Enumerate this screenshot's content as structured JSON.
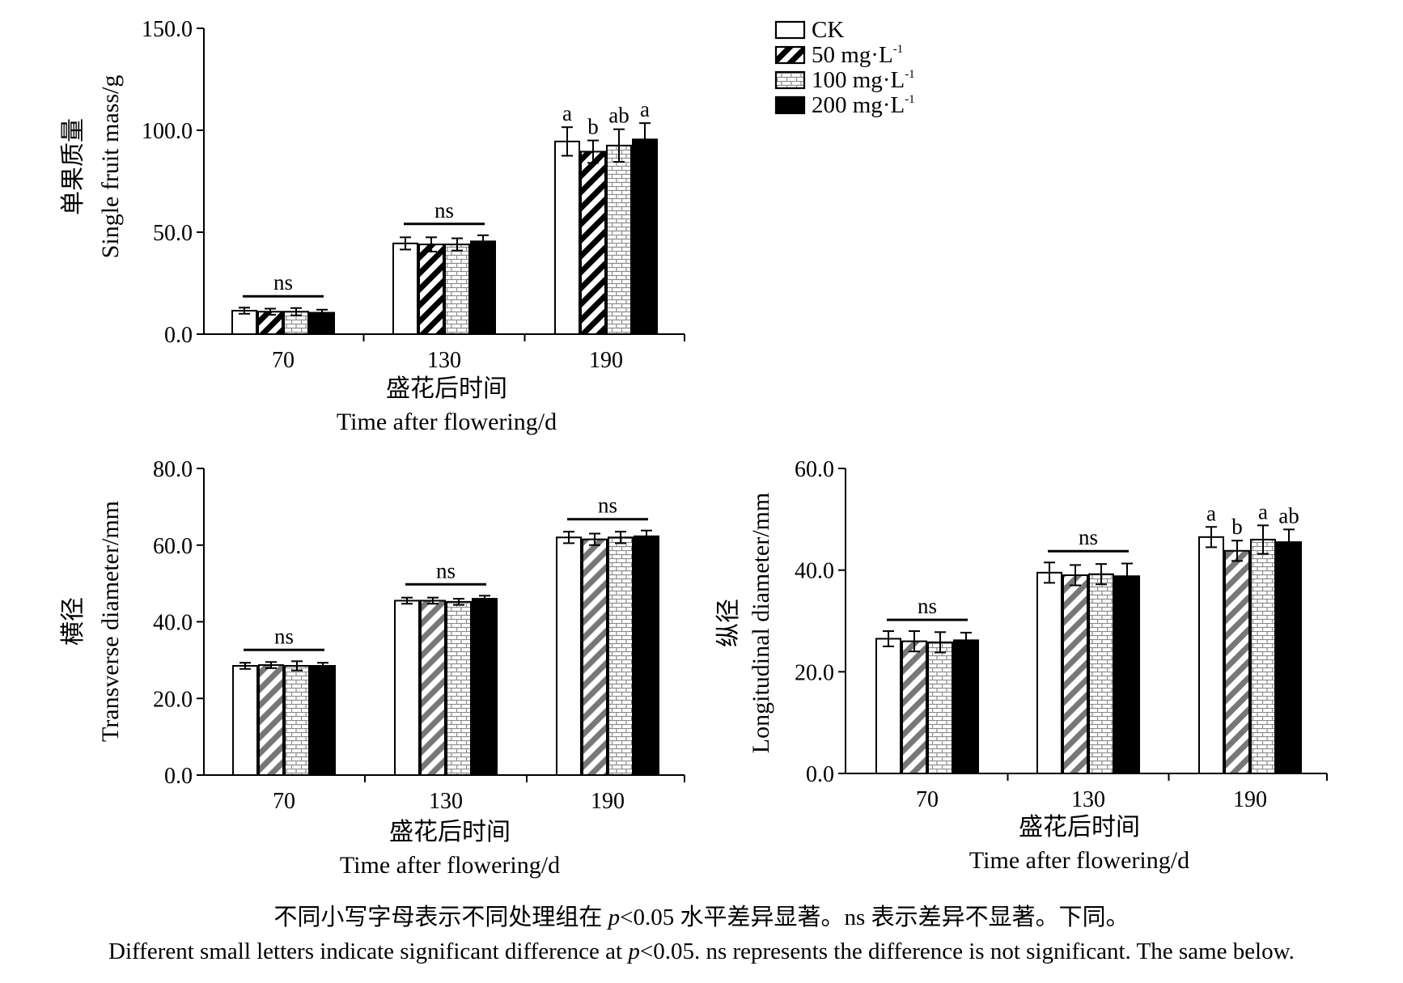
{
  "chart_data": [
    {
      "type": "bar",
      "ylabel_cn": "单果质量",
      "ylabel": "Single fruit mass/g",
      "xlabel_cn": "盛花后时间",
      "xlabel": "Time after flowering/d",
      "ylim": [
        0,
        150
      ],
      "yticks": [
        "0.0",
        "50.0",
        "100.0",
        "150.0"
      ],
      "categories": [
        "70",
        "130",
        "190"
      ],
      "legend": "top-right",
      "series": [
        {
          "name": "CK",
          "values": [
            11.5,
            44.5,
            94.5
          ],
          "errors": [
            1.5,
            3.0,
            7.0
          ]
        },
        {
          "name": "50 mg·L-1",
          "values": [
            11.0,
            44.0,
            89.5
          ],
          "errors": [
            1.5,
            3.5,
            5.5
          ]
        },
        {
          "name": "100 mg·L-1",
          "values": [
            11.0,
            44.0,
            92.5
          ],
          "errors": [
            1.8,
            3.0,
            8.0
          ]
        },
        {
          "name": "200 mg·L-1",
          "values": [
            10.5,
            45.5,
            95.5
          ],
          "errors": [
            1.5,
            3.0,
            8.0
          ]
        }
      ],
      "group_annotations": [
        "ns",
        "ns",
        ""
      ],
      "bar_letters": [
        [
          "",
          "",
          "",
          ""
        ],
        [
          "",
          "",
          "",
          ""
        ],
        [
          "a",
          "b",
          "ab",
          "a"
        ]
      ]
    },
    {
      "type": "bar",
      "ylabel_cn": "横径",
      "ylabel": "Transverse diameter/mm",
      "xlabel_cn": "盛花后时间",
      "xlabel": "Time after flowering/d",
      "ylim": [
        0,
        80
      ],
      "yticks": [
        "0.0",
        "20.0",
        "40.0",
        "60.0",
        "80.0"
      ],
      "categories": [
        "70",
        "130",
        "190"
      ],
      "series": [
        {
          "name": "CK",
          "values": [
            28.5,
            45.5,
            62.0
          ],
          "errors": [
            0.8,
            0.8,
            1.5
          ]
        },
        {
          "name": "50 mg·L-1",
          "values": [
            28.7,
            45.5,
            61.5
          ],
          "errors": [
            0.8,
            0.8,
            1.5
          ]
        },
        {
          "name": "100 mg·L-1",
          "values": [
            28.5,
            45.2,
            62.0
          ],
          "errors": [
            1.2,
            0.8,
            1.5
          ]
        },
        {
          "name": "200 mg·L-1",
          "values": [
            28.5,
            46.0,
            62.3
          ],
          "errors": [
            0.8,
            0.8,
            1.5
          ]
        }
      ],
      "group_annotations": [
        "ns",
        "ns",
        "ns"
      ],
      "bar_letters": [
        [
          "",
          "",
          "",
          ""
        ],
        [
          "",
          "",
          "",
          ""
        ],
        [
          "",
          "",
          "",
          ""
        ]
      ]
    },
    {
      "type": "bar",
      "ylabel_cn": "纵径",
      "ylabel": "Longitudinal diameter/mm",
      "xlabel_cn": "盛花后时间",
      "xlabel": "Time after flowering/d",
      "ylim": [
        0,
        60
      ],
      "yticks": [
        "0.0",
        "20.0",
        "40.0",
        "60.0"
      ],
      "categories": [
        "70",
        "130",
        "190"
      ],
      "series": [
        {
          "name": "CK",
          "values": [
            26.5,
            39.5,
            46.5
          ],
          "errors": [
            1.5,
            2.0,
            2.0
          ]
        },
        {
          "name": "50 mg·L-1",
          "values": [
            26.0,
            39.0,
            43.8
          ],
          "errors": [
            2.0,
            2.0,
            2.0
          ]
        },
        {
          "name": "100 mg·L-1",
          "values": [
            25.8,
            39.2,
            46.0
          ],
          "errors": [
            2.0,
            2.0,
            2.8
          ]
        },
        {
          "name": "200 mg·L-1",
          "values": [
            26.2,
            38.8,
            45.5
          ],
          "errors": [
            1.5,
            2.5,
            2.5
          ]
        }
      ],
      "group_annotations": [
        "ns",
        "ns",
        ""
      ],
      "bar_letters": [
        [
          "",
          "",
          "",
          ""
        ],
        [
          "",
          "",
          "",
          ""
        ],
        [
          "a",
          "b",
          "a",
          "ab"
        ]
      ]
    }
  ],
  "legend": {
    "entries": [
      {
        "label": "CK",
        "unit_sup": ""
      },
      {
        "label": "50 mg·L",
        "unit_sup": "-1"
      },
      {
        "label": "100 mg·L",
        "unit_sup": "-1"
      },
      {
        "label": "200 mg·L",
        "unit_sup": "-1"
      }
    ]
  },
  "caption": {
    "cn_pre": "不同小写字母表示不同处理组在 ",
    "cn_p": "p",
    "cn_post": "<0.05 水平差异显著。ns 表示差异不显著。下同。",
    "en_pre": "Different small letters indicate significant difference at ",
    "en_p": "p",
    "en_post": "<0.05. ns represents the difference is not significant. The same below."
  }
}
